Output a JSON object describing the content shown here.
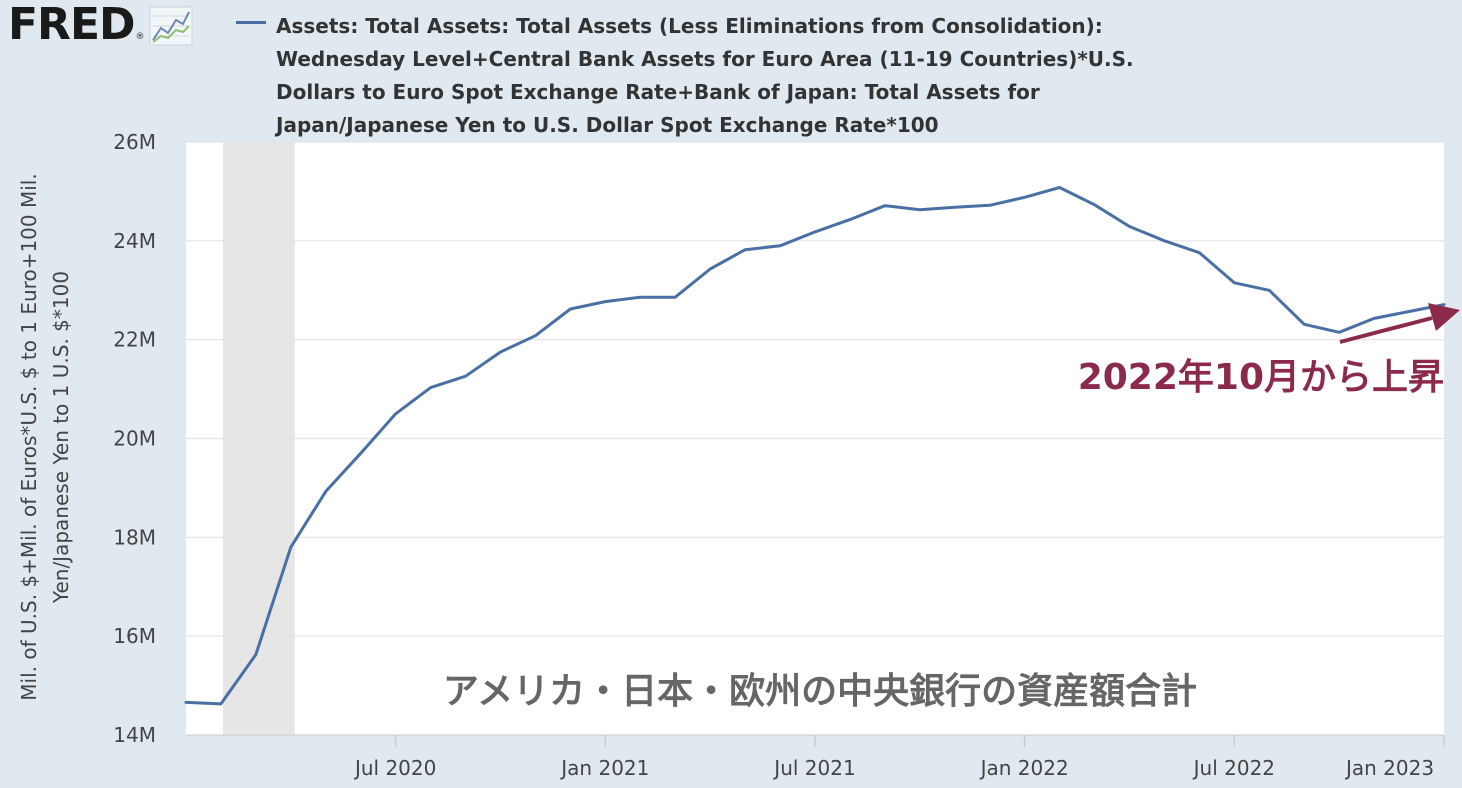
{
  "branding": {
    "logo_text": "FRED",
    "logo_reg": "®",
    "logo_icon": "line-graph-icon"
  },
  "chart_data": {
    "type": "line",
    "title": "Assets: Total Assets: Total Assets (Less Eliminations from Consolidation): Wednesday Level+Central Bank Assets for Euro Area (11-19 Countries)*U.S. Dollars to Euro Spot Exchange Rate+Bank of Japan: Total Assets for Japan/Japanese Yen to U.S. Dollar Spot Exchange Rate*100",
    "ylabel": "Mil. of U.S. $+Mil. of Euros*U.S. $ to 1 Euro+100 Mil. Yen/Japanese Yen to 1 U.S. $*100",
    "xlabel": "",
    "ylim": [
      14,
      26
    ],
    "y_unit": "M",
    "yticks": [
      "14M",
      "16M",
      "18M",
      "20M",
      "22M",
      "24M",
      "26M"
    ],
    "ytick_values": [
      14,
      16,
      18,
      20,
      22,
      24,
      26
    ],
    "xticks": [
      "Jul 2020",
      "Jan 2021",
      "Jul 2021",
      "Jan 2022",
      "Jul 2022",
      "Jan 2023"
    ],
    "xtick_dates": [
      "2020-07",
      "2021-01",
      "2021-07",
      "2022-01",
      "2022-07",
      "2023-01"
    ],
    "xlim": [
      "2020-01",
      "2023-01"
    ],
    "recession": {
      "start": "2020-02",
      "end": "2020-04"
    },
    "grid": true,
    "color": "#4a6fa5",
    "series": [
      {
        "x": [
          "2020-01",
          "2020-02",
          "2020-03",
          "2020-04",
          "2020-05",
          "2020-06",
          "2020-07",
          "2020-08",
          "2020-09",
          "2020-10",
          "2020-11",
          "2020-12",
          "2021-01",
          "2021-02",
          "2021-03",
          "2021-04",
          "2021-05",
          "2021-06",
          "2021-07",
          "2021-08",
          "2021-09",
          "2021-10",
          "2021-11",
          "2021-12",
          "2022-01",
          "2022-02",
          "2022-03",
          "2022-04",
          "2022-05",
          "2022-06",
          "2022-07",
          "2022-08",
          "2022-09",
          "2022-10",
          "2022-11",
          "2022-12",
          "2023-01"
        ],
        "values": [
          14.66,
          14.63,
          15.63,
          17.8,
          18.93,
          19.7,
          20.5,
          21.03,
          21.26,
          21.75,
          22.08,
          22.62,
          22.77,
          22.86,
          22.86,
          23.43,
          23.82,
          23.9,
          24.18,
          24.43,
          24.71,
          24.63,
          24.68,
          24.72,
          24.88,
          25.08,
          24.73,
          24.29,
          24.0,
          23.76,
          23.15,
          23.0,
          22.31,
          22.15,
          22.43,
          22.57,
          22.71
        ]
      }
    ],
    "annotations": {
      "arrow_label": "2022年10月から上昇",
      "subtitle": "アメリカ・日本・欧州の中央銀行の資産額合計",
      "arrow_color": "#8b2a4a",
      "subtitle_color": "#666666"
    }
  }
}
